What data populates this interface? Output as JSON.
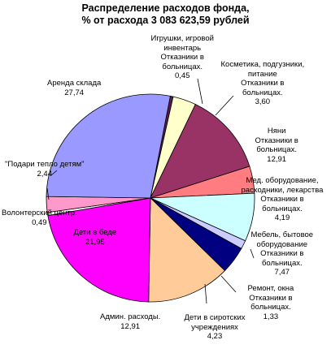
{
  "chart_data": {
    "type": "pie",
    "title": [
      "Распределение расходов фонда,",
      "% от расхода 3 083 623,59 рублей"
    ],
    "slices": [
      {
        "label": [
          "Игрушки, игровой",
          "инвентарь",
          "Отказники в",
          "больницах."
        ],
        "value": 0.45,
        "value_text": "0,45",
        "color": "#5c1a4a"
      },
      {
        "label": [
          "Косметика, подгузники,",
          "питание",
          "Отказники в",
          "больницах."
        ],
        "value": 3.6,
        "value_text": "3,60",
        "color": "#ffffcc"
      },
      {
        "label": [
          "Няни",
          "Отказники в",
          "больницах."
        ],
        "value": 12.91,
        "value_text": "12,91",
        "color": "#993366"
      },
      {
        "label": [
          "Мед. оборудование,",
          "расходники, лекарства",
          "Отказники в",
          "больницах."
        ],
        "value": 4.19,
        "value_text": "4,19",
        "color": "#ff7c80"
      },
      {
        "label": [
          "Мебель, бытовое",
          "оборудование",
          "Отказники в",
          "больницах."
        ],
        "value": 7.47,
        "value_text": "7,47",
        "color": "#ccffff"
      },
      {
        "label": [
          "Ремонт, окна",
          "Отказники в",
          "больницах."
        ],
        "value": 1.33,
        "value_text": "1,33",
        "color": "#ccccff"
      },
      {
        "label": [
          "Дети в сиротских",
          "учреждениях"
        ],
        "value": 4.23,
        "value_text": "4,23",
        "color": "#000080"
      },
      {
        "label": [
          "Админ. расходы."
        ],
        "value": 12.91,
        "value_text": "12,91",
        "color": "#ffcc99"
      },
      {
        "label": [
          "Дети в беде"
        ],
        "value": 21.95,
        "value_text": "21,95",
        "color": "#ff00ff"
      },
      {
        "label": [
          "Волонтерский центр."
        ],
        "value": 0.49,
        "value_text": "0,49",
        "color": "#ffffff"
      },
      {
        "label": [
          "\"Подари тепло детям\""
        ],
        "value": 2.44,
        "value_text": "2,44",
        "color": "#ff99cc"
      },
      {
        "label": [
          "Аренда склада"
        ],
        "value": 27.74,
        "value_text": "27,74",
        "color": "#9999ff"
      }
    ]
  }
}
